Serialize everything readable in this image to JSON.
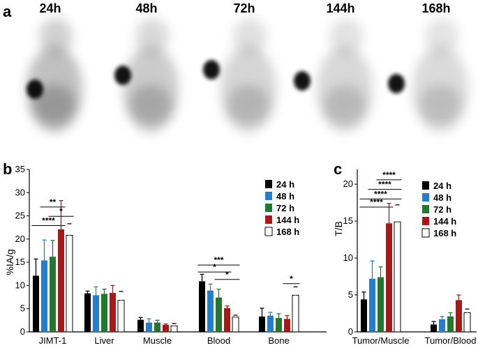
{
  "colors": {
    "24 h": "#000000",
    "48 h": "#1f7fd1",
    "72 h": "#1f7a2e",
    "144 h": "#b01515",
    "168 h": "#ffffff"
  },
  "panel_a": {
    "label": "a",
    "timepoints": [
      "24h",
      "48h",
      "72h",
      "144h",
      "168h"
    ]
  },
  "chart_data": [
    {
      "type": "bar",
      "panel_label": "b",
      "ylabel": "%IA/g",
      "ylim": [
        0,
        35
      ],
      "yticks": [
        "0",
        "5",
        "10",
        "15",
        "20",
        "25",
        "30",
        "35"
      ],
      "categories": [
        "JIMT-1",
        "Liver",
        "Muscle",
        "Blood",
        "Bone"
      ],
      "series": [
        {
          "name": "24 h",
          "values": [
            12.1,
            8.3,
            2.6,
            10.9,
            3.3
          ],
          "errors": [
            3.6,
            0.5,
            0.5,
            1.5,
            1.8
          ]
        },
        {
          "name": "48 h",
          "values": [
            15.4,
            7.9,
            2.0,
            8.9,
            3.5
          ],
          "errors": [
            4.4,
            1.8,
            0.8,
            1.4,
            0.7
          ]
        },
        {
          "name": "72 h",
          "values": [
            16.2,
            8.2,
            2.0,
            7.4,
            3.0
          ],
          "errors": [
            3.5,
            1.0,
            0.5,
            1.8,
            0.9
          ]
        },
        {
          "name": "144 h",
          "values": [
            22.1,
            8.4,
            1.5,
            5.1,
            2.8
          ],
          "errors": [
            6.2,
            1.6,
            0.2,
            0.5,
            0.7
          ]
        },
        {
          "name": "168 h",
          "values": [
            20.8,
            6.8,
            1.3,
            3.2,
            7.9
          ],
          "errors": [
            2.5,
            1.9,
            0.5,
            0.4,
            1.8
          ]
        }
      ],
      "significance": [
        {
          "label": "**",
          "category": "JIMT-1",
          "from": 1,
          "to": 3,
          "y": 26.9
        },
        {
          "label": "*",
          "category": "JIMT-1",
          "from": 2,
          "to": 4,
          "y": 24.9
        },
        {
          "label": "****",
          "category": "JIMT-1",
          "from": 0,
          "to": 3,
          "y": 22.9
        },
        {
          "label": "***",
          "category": "Blood",
          "from": 0,
          "to": 4,
          "y": 14.4
        },
        {
          "label": "*",
          "category": "Blood",
          "from": 0,
          "to": 3,
          "y": 12.9
        },
        {
          "label": "*",
          "category": "Blood",
          "from": 2,
          "to": 4,
          "y": 11.3
        },
        {
          "label": "*",
          "category": "Bone",
          "from": 3,
          "to": 4,
          "y": 10.4
        }
      ],
      "legend": [
        "24 h",
        "48 h",
        "72 h",
        "144 h",
        "168 h"
      ],
      "legend_position": "top-right"
    },
    {
      "type": "bar",
      "panel_label": "c",
      "ylabel": "T/B",
      "ylim": [
        0,
        22
      ],
      "yticks": [
        "0",
        "5",
        "10",
        "15",
        "20"
      ],
      "categories": [
        "Tumor/Muscle",
        "Tumor/Blood"
      ],
      "series": [
        {
          "name": "24 h",
          "values": [
            4.4,
            1.0
          ],
          "errors": [
            1.0,
            0.4
          ]
        },
        {
          "name": "48 h",
          "values": [
            7.2,
            1.7
          ],
          "errors": [
            2.4,
            0.4
          ]
        },
        {
          "name": "72 h",
          "values": [
            7.4,
            2.1
          ],
          "errors": [
            1.4,
            0.5
          ]
        },
        {
          "name": "144 h",
          "values": [
            14.7,
            4.3
          ],
          "errors": [
            2.7,
            0.7
          ]
        },
        {
          "name": "168 h",
          "values": [
            14.9,
            2.6
          ],
          "errors": [
            2.3,
            0.5
          ]
        }
      ],
      "significance": [
        {
          "label": "****",
          "category": "Tumor/Muscle",
          "from": 2,
          "to": 4,
          "y": 20.6
        },
        {
          "label": "****",
          "category": "Tumor/Muscle",
          "from": 1,
          "to": 4,
          "y": 19.3
        },
        {
          "label": "****",
          "category": "Tumor/Muscle",
          "from": 0,
          "to": 4,
          "y": 18.0
        },
        {
          "label": "****",
          "category": "Tumor/Muscle",
          "from": 0,
          "to": 3,
          "y": 16.9
        }
      ],
      "legend": [
        "24 h",
        "48 h",
        "72 h",
        "144 h",
        "168 h"
      ],
      "legend_position": "top-right"
    }
  ]
}
